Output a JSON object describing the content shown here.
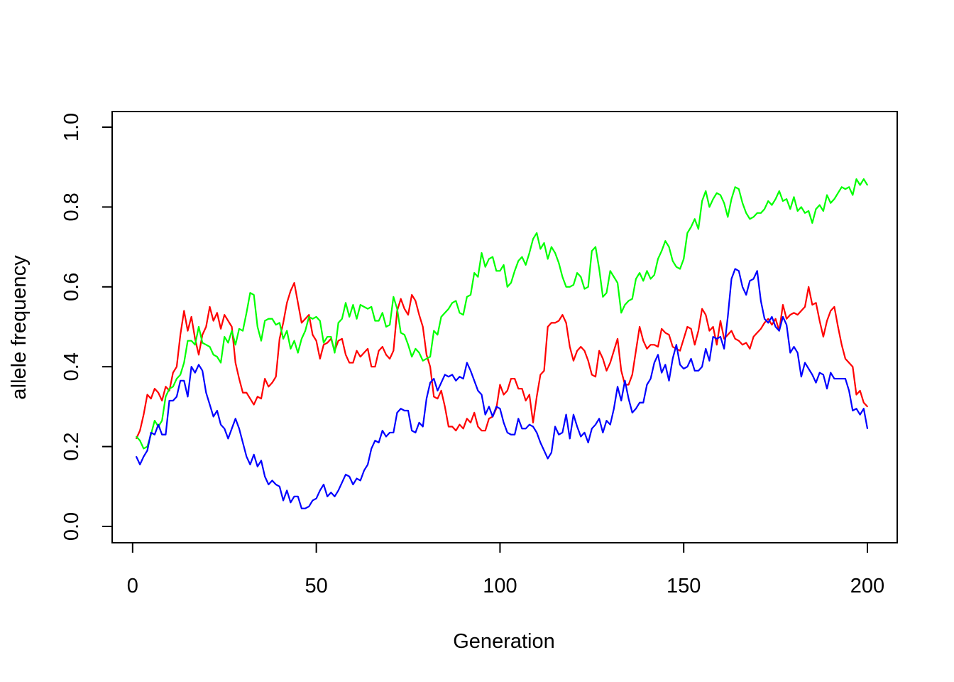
{
  "chart_data": {
    "type": "line",
    "title": "",
    "xlabel": "Generation",
    "ylabel": "allele frequency",
    "xlim": [
      1,
      200
    ],
    "ylim": [
      0,
      1
    ],
    "x_ticks": [
      0,
      50,
      100,
      150,
      200
    ],
    "y_ticks": [
      0.0,
      0.2,
      0.4,
      0.6,
      0.8,
      1.0
    ],
    "x_tick_labels": [
      "0",
      "50",
      "100",
      "150",
      "200"
    ],
    "y_tick_labels": [
      "0.0",
      "0.2",
      "0.4",
      "0.6",
      "0.8",
      "1.0"
    ],
    "grid": false,
    "legend": "none",
    "x_start": 1,
    "x_step": 1,
    "series": [
      {
        "color": "#ff0000",
        "values": [
          0.22,
          0.24,
          0.28,
          0.33,
          0.32,
          0.345,
          0.335,
          0.315,
          0.35,
          0.34,
          0.385,
          0.4,
          0.48,
          0.54,
          0.49,
          0.525,
          0.47,
          0.43,
          0.48,
          0.5,
          0.55,
          0.515,
          0.535,
          0.495,
          0.53,
          0.515,
          0.5,
          0.41,
          0.37,
          0.335,
          0.335,
          0.32,
          0.305,
          0.325,
          0.32,
          0.37,
          0.35,
          0.36,
          0.375,
          0.47,
          0.51,
          0.56,
          0.59,
          0.61,
          0.56,
          0.51,
          0.52,
          0.53,
          0.48,
          0.465,
          0.42,
          0.455,
          0.46,
          0.47,
          0.44,
          0.465,
          0.47,
          0.43,
          0.41,
          0.41,
          0.44,
          0.425,
          0.435,
          0.445,
          0.4,
          0.4,
          0.44,
          0.45,
          0.43,
          0.42,
          0.44,
          0.54,
          0.57,
          0.545,
          0.53,
          0.58,
          0.565,
          0.53,
          0.5,
          0.43,
          0.4,
          0.325,
          0.32,
          0.34,
          0.3,
          0.25,
          0.25,
          0.24,
          0.255,
          0.245,
          0.27,
          0.26,
          0.285,
          0.25,
          0.24,
          0.24,
          0.27,
          0.275,
          0.295,
          0.355,
          0.33,
          0.34,
          0.37,
          0.37,
          0.345,
          0.345,
          0.315,
          0.33,
          0.26,
          0.325,
          0.38,
          0.39,
          0.5,
          0.51,
          0.51,
          0.515,
          0.53,
          0.51,
          0.45,
          0.415,
          0.44,
          0.45,
          0.44,
          0.415,
          0.38,
          0.375,
          0.44,
          0.42,
          0.39,
          0.41,
          0.44,
          0.47,
          0.39,
          0.355,
          0.355,
          0.38,
          0.44,
          0.5,
          0.465,
          0.445,
          0.455,
          0.455,
          0.45,
          0.495,
          0.485,
          0.48,
          0.45,
          0.445,
          0.44,
          0.47,
          0.5,
          0.495,
          0.455,
          0.49,
          0.545,
          0.53,
          0.49,
          0.5,
          0.455,
          0.515,
          0.47,
          0.48,
          0.49,
          0.47,
          0.465,
          0.455,
          0.46,
          0.445,
          0.475,
          0.485,
          0.495,
          0.51,
          0.52,
          0.505,
          0.52,
          0.49,
          0.555,
          0.52,
          0.53,
          0.535,
          0.53,
          0.54,
          0.55,
          0.6,
          0.555,
          0.56,
          0.515,
          0.475,
          0.515,
          0.54,
          0.55,
          0.5,
          0.455,
          0.42,
          0.41,
          0.4,
          0.33,
          0.34,
          0.31,
          0.3
        ]
      },
      {
        "color": "#00ff00",
        "values": [
          0.225,
          0.215,
          0.195,
          0.2,
          0.23,
          0.265,
          0.25,
          0.265,
          0.325,
          0.345,
          0.35,
          0.37,
          0.38,
          0.41,
          0.465,
          0.465,
          0.455,
          0.5,
          0.46,
          0.455,
          0.45,
          0.43,
          0.425,
          0.41,
          0.475,
          0.46,
          0.49,
          0.455,
          0.495,
          0.49,
          0.535,
          0.585,
          0.58,
          0.5,
          0.465,
          0.515,
          0.52,
          0.52,
          0.505,
          0.51,
          0.47,
          0.49,
          0.445,
          0.465,
          0.435,
          0.47,
          0.49,
          0.525,
          0.52,
          0.525,
          0.515,
          0.46,
          0.475,
          0.475,
          0.435,
          0.51,
          0.52,
          0.56,
          0.525,
          0.555,
          0.52,
          0.555,
          0.55,
          0.545,
          0.55,
          0.515,
          0.515,
          0.535,
          0.5,
          0.505,
          0.575,
          0.545,
          0.485,
          0.48,
          0.455,
          0.425,
          0.445,
          0.435,
          0.415,
          0.42,
          0.425,
          0.49,
          0.48,
          0.525,
          0.535,
          0.545,
          0.56,
          0.565,
          0.535,
          0.53,
          0.575,
          0.58,
          0.635,
          0.625,
          0.685,
          0.65,
          0.67,
          0.675,
          0.64,
          0.64,
          0.655,
          0.6,
          0.61,
          0.64,
          0.665,
          0.675,
          0.655,
          0.685,
          0.72,
          0.735,
          0.695,
          0.71,
          0.67,
          0.7,
          0.685,
          0.66,
          0.625,
          0.6,
          0.6,
          0.605,
          0.635,
          0.625,
          0.595,
          0.6,
          0.69,
          0.7,
          0.645,
          0.575,
          0.585,
          0.64,
          0.625,
          0.61,
          0.535,
          0.555,
          0.565,
          0.57,
          0.62,
          0.635,
          0.615,
          0.64,
          0.62,
          0.63,
          0.67,
          0.69,
          0.715,
          0.7,
          0.665,
          0.65,
          0.645,
          0.67,
          0.735,
          0.75,
          0.77,
          0.745,
          0.815,
          0.84,
          0.8,
          0.82,
          0.835,
          0.83,
          0.81,
          0.775,
          0.82,
          0.85,
          0.845,
          0.81,
          0.785,
          0.77,
          0.775,
          0.785,
          0.785,
          0.795,
          0.815,
          0.805,
          0.82,
          0.84,
          0.815,
          0.82,
          0.795,
          0.825,
          0.79,
          0.8,
          0.785,
          0.79,
          0.76,
          0.795,
          0.805,
          0.79,
          0.83,
          0.81,
          0.82,
          0.835,
          0.85,
          0.845,
          0.85,
          0.83,
          0.87,
          0.855,
          0.87,
          0.855
        ]
      },
      {
        "color": "#0000ff",
        "values": [
          0.175,
          0.155,
          0.175,
          0.19,
          0.235,
          0.23,
          0.255,
          0.23,
          0.23,
          0.315,
          0.315,
          0.325,
          0.365,
          0.365,
          0.325,
          0.4,
          0.385,
          0.405,
          0.39,
          0.335,
          0.305,
          0.275,
          0.29,
          0.255,
          0.245,
          0.22,
          0.245,
          0.27,
          0.245,
          0.21,
          0.175,
          0.155,
          0.18,
          0.15,
          0.165,
          0.125,
          0.105,
          0.115,
          0.105,
          0.1,
          0.065,
          0.09,
          0.06,
          0.075,
          0.075,
          0.045,
          0.045,
          0.05,
          0.065,
          0.07,
          0.09,
          0.105,
          0.075,
          0.085,
          0.075,
          0.09,
          0.11,
          0.13,
          0.125,
          0.105,
          0.12,
          0.115,
          0.14,
          0.155,
          0.195,
          0.215,
          0.21,
          0.24,
          0.225,
          0.235,
          0.235,
          0.285,
          0.295,
          0.29,
          0.29,
          0.24,
          0.235,
          0.26,
          0.25,
          0.32,
          0.36,
          0.37,
          0.34,
          0.36,
          0.38,
          0.375,
          0.38,
          0.365,
          0.375,
          0.37,
          0.41,
          0.39,
          0.365,
          0.34,
          0.33,
          0.28,
          0.3,
          0.275,
          0.3,
          0.295,
          0.26,
          0.235,
          0.23,
          0.23,
          0.27,
          0.245,
          0.245,
          0.255,
          0.25,
          0.235,
          0.21,
          0.19,
          0.17,
          0.185,
          0.25,
          0.23,
          0.235,
          0.28,
          0.22,
          0.28,
          0.25,
          0.225,
          0.235,
          0.21,
          0.245,
          0.255,
          0.27,
          0.235,
          0.265,
          0.255,
          0.295,
          0.35,
          0.315,
          0.365,
          0.32,
          0.285,
          0.295,
          0.31,
          0.31,
          0.355,
          0.37,
          0.41,
          0.43,
          0.385,
          0.405,
          0.365,
          0.42,
          0.455,
          0.405,
          0.395,
          0.4,
          0.42,
          0.39,
          0.39,
          0.4,
          0.445,
          0.415,
          0.475,
          0.47,
          0.475,
          0.445,
          0.525,
          0.62,
          0.645,
          0.64,
          0.6,
          0.58,
          0.615,
          0.62,
          0.64,
          0.565,
          0.52,
          0.51,
          0.525,
          0.5,
          0.49,
          0.525,
          0.505,
          0.435,
          0.45,
          0.435,
          0.375,
          0.41,
          0.395,
          0.38,
          0.36,
          0.385,
          0.38,
          0.345,
          0.385,
          0.37,
          0.37,
          0.37,
          0.37,
          0.34,
          0.29,
          0.295,
          0.28,
          0.295,
          0.245
        ]
      }
    ]
  }
}
